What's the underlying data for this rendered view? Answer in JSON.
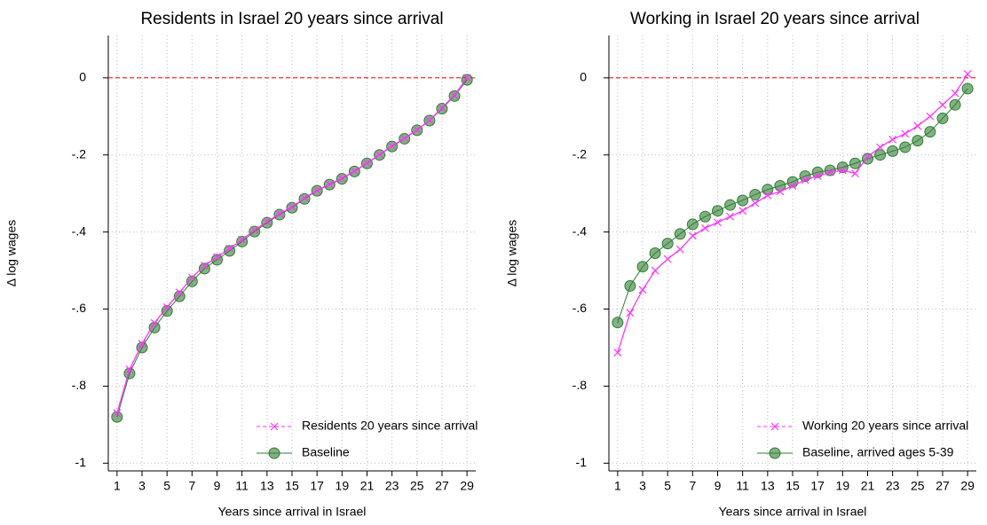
{
  "chart_data": [
    {
      "type": "line",
      "title": "Residents in Israel 20 years since arrival",
      "xlabel": "Years since arrival in Israel",
      "ylabel": "Δ log wages",
      "x": [
        1,
        2,
        3,
        4,
        5,
        6,
        7,
        8,
        9,
        10,
        11,
        12,
        13,
        14,
        15,
        16,
        17,
        18,
        19,
        20,
        21,
        22,
        23,
        24,
        25,
        26,
        27,
        28,
        29
      ],
      "series": [
        {
          "name": "Residents 20 years since arrival",
          "color": "#ff33ff",
          "marker": "x",
          "values": [
            -0.87,
            -0.757,
            -0.69,
            -0.636,
            -0.595,
            -0.557,
            -0.518,
            -0.487,
            -0.465,
            -0.443,
            -0.42,
            -0.395,
            -0.373,
            -0.353,
            -0.335,
            -0.312,
            -0.292,
            -0.276,
            -0.261,
            -0.242,
            -0.221,
            -0.199,
            -0.177,
            -0.157,
            -0.135,
            -0.11,
            -0.078,
            -0.045,
            0.0
          ]
        },
        {
          "name": "Baseline",
          "color": "#2e7d32",
          "marker": "circle",
          "values": [
            -0.88,
            -0.767,
            -0.7,
            -0.648,
            -0.605,
            -0.567,
            -0.528,
            -0.495,
            -0.472,
            -0.449,
            -0.425,
            -0.399,
            -0.376,
            -0.355,
            -0.337,
            -0.314,
            -0.293,
            -0.277,
            -0.262,
            -0.243,
            -0.222,
            -0.2,
            -0.178,
            -0.158,
            -0.136,
            -0.111,
            -0.08,
            -0.047,
            -0.005
          ]
        }
      ],
      "xlim": [
        0.3,
        29.7
      ],
      "xticks": [
        1,
        3,
        5,
        7,
        9,
        11,
        13,
        15,
        17,
        19,
        21,
        23,
        25,
        27,
        29
      ],
      "ylim": [
        -1.02,
        0.11
      ],
      "yticks": [
        {
          "value": -1,
          "label": "-1"
        },
        {
          "value": -0.8,
          "label": "-.8"
        },
        {
          "value": -0.6,
          "label": "-.6"
        },
        {
          "value": -0.4,
          "label": "-.4"
        },
        {
          "value": -0.2,
          "label": "-.2"
        },
        0
      ],
      "hline": 0,
      "grid": true,
      "legend": "bottom-right"
    },
    {
      "type": "line",
      "title": "Working in Israel 20 years since arrival",
      "xlabel": "Years since arrival in Israel",
      "ylabel": "Δ log wages",
      "x": [
        1,
        2,
        3,
        4,
        5,
        6,
        7,
        8,
        9,
        10,
        11,
        12,
        13,
        14,
        15,
        16,
        17,
        18,
        19,
        20,
        21,
        22,
        23,
        24,
        25,
        26,
        27,
        28,
        29
      ],
      "series": [
        {
          "name": "Working 20 years since arrival",
          "color": "#ff33ff",
          "marker": "x",
          "values": [
            -0.713,
            -0.61,
            -0.55,
            -0.5,
            -0.47,
            -0.445,
            -0.41,
            -0.39,
            -0.375,
            -0.36,
            -0.345,
            -0.325,
            -0.305,
            -0.295,
            -0.28,
            -0.265,
            -0.255,
            -0.245,
            -0.24,
            -0.248,
            -0.205,
            -0.18,
            -0.16,
            -0.145,
            -0.125,
            -0.1,
            -0.07,
            -0.04,
            0.01
          ]
        },
        {
          "name": "Baseline, arrived ages 5-39",
          "color": "#2e7d32",
          "marker": "circle",
          "values": [
            -0.635,
            -0.54,
            -0.49,
            -0.455,
            -0.43,
            -0.405,
            -0.38,
            -0.36,
            -0.345,
            -0.33,
            -0.318,
            -0.303,
            -0.29,
            -0.28,
            -0.27,
            -0.255,
            -0.245,
            -0.24,
            -0.232,
            -0.222,
            -0.21,
            -0.2,
            -0.19,
            -0.18,
            -0.163,
            -0.14,
            -0.105,
            -0.07,
            -0.028
          ]
        }
      ],
      "xlim": [
        0.3,
        29.7
      ],
      "xticks": [
        1,
        3,
        5,
        7,
        9,
        11,
        13,
        15,
        17,
        19,
        21,
        23,
        25,
        27,
        29
      ],
      "ylim": [
        -1.02,
        0.11
      ],
      "yticks": [
        {
          "value": -1,
          "label": "-1"
        },
        {
          "value": -0.8,
          "label": "-.8"
        },
        {
          "value": -0.6,
          "label": "-.6"
        },
        {
          "value": -0.4,
          "label": "-.4"
        },
        {
          "value": -0.2,
          "label": "-.2"
        },
        0
      ],
      "hline": 0,
      "grid": true,
      "legend": "bottom-right"
    }
  ]
}
